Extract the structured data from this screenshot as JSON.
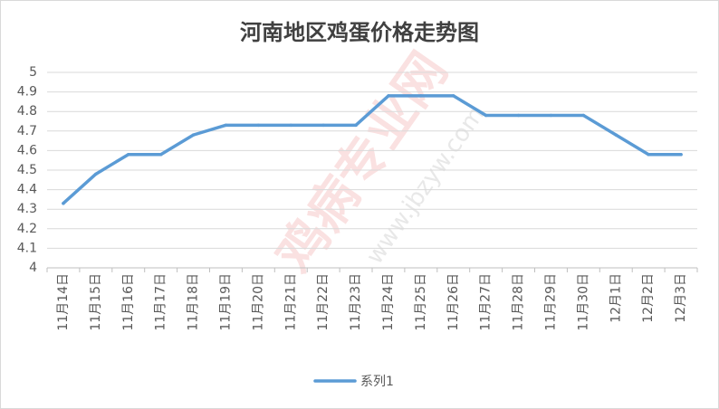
{
  "chart_data": {
    "type": "line",
    "title": "河南地区鸡蛋价格走势图",
    "categories": [
      "11月14日",
      "11月15日",
      "11月16日",
      "11月17日",
      "11月18日",
      "11月19日",
      "11月20日",
      "11月21日",
      "11月22日",
      "11月23日",
      "11月24日",
      "11月25日",
      "11月26日",
      "11月27日",
      "11月28日",
      "11月29日",
      "11月30日",
      "12月1日",
      "12月2日",
      "12月3日"
    ],
    "series": [
      {
        "name": "系列1",
        "color": "#5b9bd5",
        "values": [
          4.33,
          4.48,
          4.58,
          4.58,
          4.68,
          4.73,
          4.73,
          4.73,
          4.73,
          4.73,
          4.88,
          4.88,
          4.88,
          4.78,
          4.78,
          4.78,
          4.78,
          4.68,
          4.58,
          4.58
        ]
      }
    ],
    "ylim": [
      4,
      5
    ],
    "yticks": [
      "4",
      "4.1",
      "4.2",
      "4.3",
      "4.4",
      "4.5",
      "4.6",
      "4.7",
      "4.8",
      "4.9",
      "5"
    ],
    "xlabel": "",
    "ylabel": "",
    "grid": true,
    "legend": "bottom-center"
  },
  "watermark": {
    "text": "鸡病专业网",
    "url": "www.jbzyw.com"
  }
}
